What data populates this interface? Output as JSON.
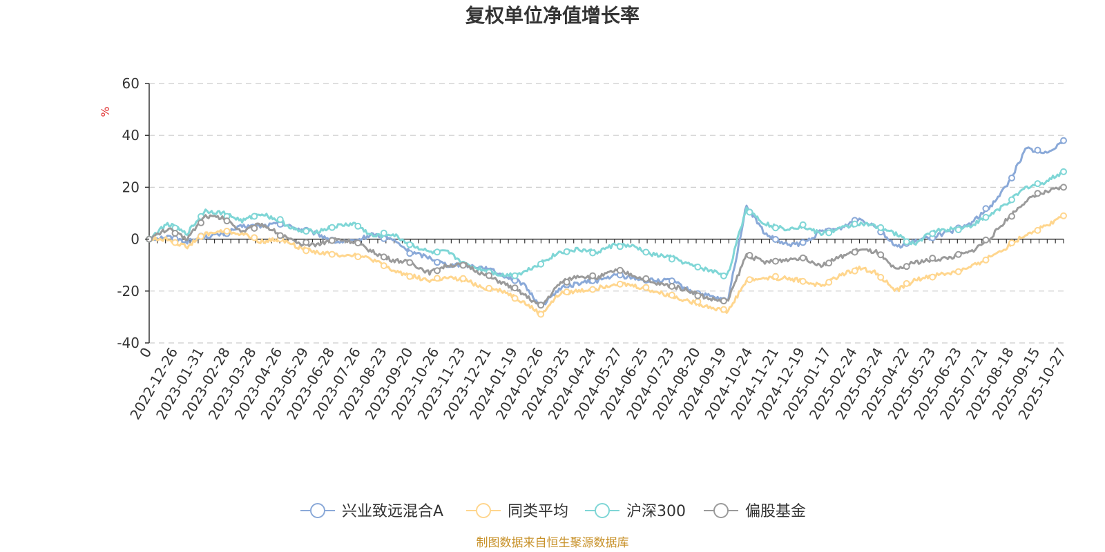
{
  "chart_data": {
    "type": "line",
    "title": "复权单位净值增长率",
    "ylabel": "%",
    "ylim": [
      -40,
      60
    ],
    "yticks": [
      "60",
      "40",
      "20",
      "0",
      "-20",
      "-40"
    ],
    "x_tick_labels": [
      "0",
      "2022-12-26",
      "2023-01-31",
      "2023-02-28",
      "2023-03-28",
      "2023-04-26",
      "2023-05-29",
      "2023-06-28",
      "2023-07-26",
      "2023-08-23",
      "2023-09-20",
      "2023-10-26",
      "2023-11-23",
      "2023-12-21",
      "2024-01-19",
      "2024-02-26",
      "2024-03-25",
      "2024-04-24",
      "2024-05-27",
      "2024-06-25",
      "2024-07-23",
      "2024-08-20",
      "2024-09-19",
      "2024-10-24",
      "2024-11-21",
      "2024-12-19",
      "2025-01-17",
      "2025-02-24",
      "2025-03-24",
      "2025-04-22",
      "2025-05-23",
      "2025-06-23",
      "2025-07-21",
      "2025-08-18",
      "2025-09-15",
      "2025-10-27"
    ],
    "grid": true,
    "legend_position": "bottom",
    "series": [
      {
        "name": "兴业致远混合A",
        "color": "#8aa9d8",
        "values": [
          0,
          1,
          -1,
          1,
          2,
          5,
          5,
          6,
          4,
          2,
          -1,
          -1,
          2,
          0,
          -5,
          -7,
          -10,
          -10,
          -11,
          -14,
          -17,
          -26,
          -19,
          -17,
          -16,
          -14,
          -15,
          -16,
          -16,
          -20,
          -22,
          -24,
          13,
          2,
          -2,
          -2,
          3,
          4,
          8,
          5,
          -3,
          -1,
          1,
          3,
          6,
          12,
          21,
          35,
          33,
          38
        ]
      },
      {
        "name": "同类平均",
        "color": "#ffd68e",
        "values": [
          0,
          0,
          -3,
          2,
          3,
          2,
          -1,
          0,
          -3,
          -5,
          -6,
          -6,
          -8,
          -12,
          -14,
          -16,
          -15,
          -16,
          -19,
          -20,
          -24,
          -29,
          -21,
          -20,
          -19,
          -17,
          -18,
          -20,
          -22,
          -24,
          -26,
          -28,
          -16,
          -15,
          -15,
          -16,
          -18,
          -14,
          -11,
          -13,
          -20,
          -16,
          -14,
          -13,
          -11,
          -7,
          -3,
          2,
          5,
          9
        ]
      },
      {
        "name": "沪深300",
        "color": "#7fd6d6",
        "values": [
          0,
          6,
          2,
          11,
          10,
          7,
          10,
          7,
          3,
          3,
          5,
          6,
          1,
          2,
          -2,
          -5,
          -5,
          -10,
          -12,
          -14,
          -13,
          -9,
          -5,
          -4,
          -5,
          -2,
          -3,
          -6,
          -7,
          -10,
          -12,
          -14,
          12,
          6,
          4,
          5,
          2,
          4,
          6,
          5,
          2,
          -2,
          3,
          4,
          5,
          9,
          14,
          20,
          22,
          26
        ]
      },
      {
        "name": "偏股基金",
        "color": "#9a9a9a",
        "values": [
          0,
          4,
          0,
          9,
          8,
          3,
          6,
          2,
          -2,
          -2,
          0,
          -1,
          -5,
          -8,
          -9,
          -13,
          -10,
          -10,
          -14,
          -17,
          -21,
          -26,
          -17,
          -14,
          -15,
          -12,
          -14,
          -17,
          -18,
          -20,
          -23,
          -24,
          -6,
          -9,
          -8,
          -7,
          -10,
          -7,
          -4,
          -5,
          -12,
          -9,
          -8,
          -7,
          -5,
          0,
          8,
          15,
          18,
          20
        ]
      }
    ]
  },
  "footer": {
    "source": "制图数据来自恒生聚源数据库"
  },
  "colors": {
    "axis": "#333333",
    "grid": "#cccccc",
    "unit": "#e03030",
    "footer": "#c8922b"
  }
}
